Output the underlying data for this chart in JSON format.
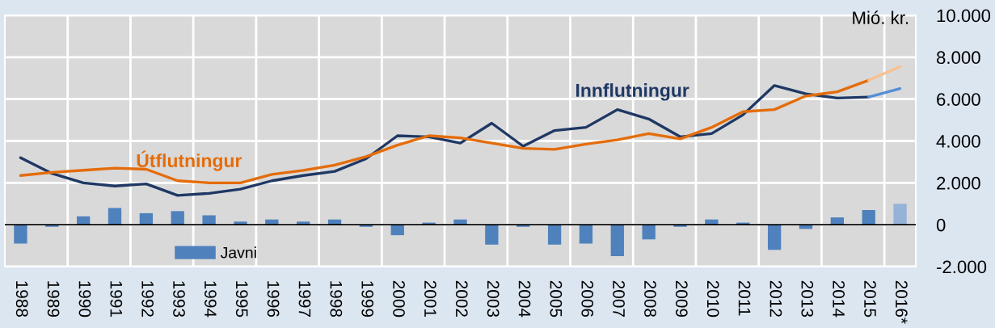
{
  "chart_data": {
    "type": "bar",
    "categories": [
      "1988",
      "1989",
      "1990",
      "1991",
      "1992",
      "1993",
      "1994",
      "1995",
      "1996",
      "1997",
      "1998",
      "1999",
      "2000",
      "2001",
      "2002",
      "2003",
      "2004",
      "2005",
      "2006",
      "2007",
      "2008",
      "2009",
      "2010",
      "2011",
      "2012",
      "2013",
      "2014",
      "2015",
      "2016*"
    ],
    "series": [
      {
        "name": "Javni",
        "colors": [
          "#4f81bd",
          "#4f81bd",
          "#4f81bd",
          "#4f81bd",
          "#4f81bd",
          "#4f81bd",
          "#4f81bd",
          "#4f81bd",
          "#4f81bd",
          "#4f81bd",
          "#4f81bd",
          "#4f81bd",
          "#4f81bd",
          "#4f81bd",
          "#4f81bd",
          "#4f81bd",
          "#4f81bd",
          "#4f81bd",
          "#4f81bd",
          "#4f81bd",
          "#4f81bd",
          "#4f81bd",
          "#4f81bd",
          "#4f81bd",
          "#4f81bd",
          "#4f81bd",
          "#4f81bd",
          "#4f81bd",
          "#95b3d7"
        ],
        "values": [
          -900,
          -100,
          400,
          800,
          550,
          650,
          450,
          150,
          250,
          150,
          250,
          -100,
          -500,
          100,
          250,
          -950,
          -100,
          -950,
          -900,
          -1500,
          -700,
          -100,
          250,
          100,
          -1200,
          -200,
          350,
          700,
          1000
        ]
      },
      {
        "name": "Innflutningur",
        "type": "line",
        "color": "#1f3864",
        "values": [
          3200,
          2450,
          2000,
          1850,
          1950,
          1400,
          1500,
          1700,
          2100,
          2350,
          2550,
          3150,
          4250,
          4200,
          3900,
          4850,
          3750,
          4500,
          4650,
          5500,
          5050,
          4200,
          4350,
          5250,
          6650,
          6250,
          6050,
          6100,
          null
        ]
      },
      {
        "name": "Útflutningur",
        "type": "line",
        "color": "#e46c0a",
        "values": [
          2350,
          2500,
          2600,
          2700,
          2650,
          2100,
          2000,
          2000,
          2400,
          2600,
          2850,
          3250,
          3800,
          4250,
          4150,
          3900,
          3650,
          3600,
          3850,
          4050,
          4350,
          4100,
          4650,
          5400,
          5500,
          6150,
          6350,
          6900,
          null
        ]
      },
      {
        "type": "line",
        "color": "#558ed5",
        "values": [
          null,
          null,
          null,
          null,
          null,
          null,
          null,
          null,
          null,
          null,
          null,
          null,
          null,
          null,
          null,
          null,
          null,
          null,
          null,
          null,
          null,
          null,
          null,
          null,
          null,
          null,
          null,
          6100,
          6500
        ]
      },
      {
        "type": "line",
        "color": "#fac090",
        "values": [
          null,
          null,
          null,
          null,
          null,
          null,
          null,
          null,
          null,
          null,
          null,
          null,
          null,
          null,
          null,
          null,
          null,
          null,
          null,
          null,
          null,
          null,
          null,
          null,
          null,
          null,
          null,
          6900,
          7550
        ]
      }
    ],
    "ylabel": "Mió. kr.",
    "ylim": [
      -2000,
      10000
    ],
    "yticks": [
      {
        "value": -2000,
        "label": "-2.000"
      },
      0,
      {
        "value": 2000,
        "label": "2.000"
      },
      {
        "value": 4000,
        "label": "4.000"
      },
      {
        "value": 6000,
        "label": "6.000"
      },
      {
        "value": 8000,
        "label": "8.000"
      },
      {
        "value": 10000,
        "label": "10.000"
      }
    ],
    "grid": true,
    "legend": "bottom left"
  }
}
